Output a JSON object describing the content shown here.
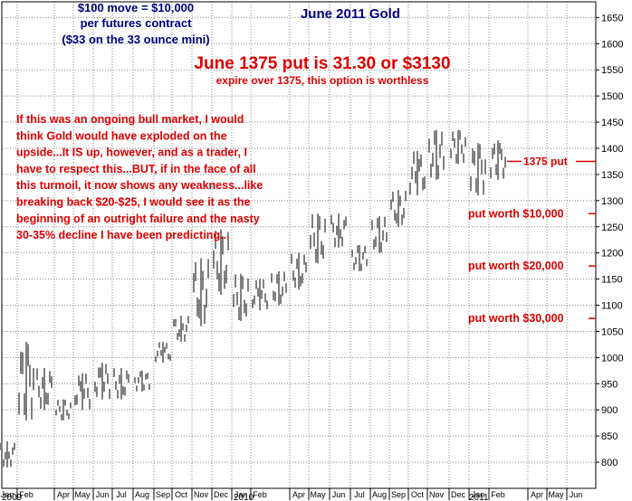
{
  "chart_data": {
    "type": "bar",
    "subtype": "ohlc",
    "title": "June 2011 Gold",
    "ylim": [
      750,
      1680
    ],
    "y_scale": "linear",
    "y_ticks": [
      800,
      850,
      900,
      950,
      1000,
      1050,
      1100,
      1150,
      1200,
      1250,
      1300,
      1350,
      1400,
      1450,
      1500,
      1550,
      1600,
      1650
    ],
    "grid": true,
    "month_labels": [
      "Jan",
      "Feb",
      "Apr",
      "May",
      "Jun",
      "Jul",
      "Aug",
      "Sep",
      "Oct",
      "Nov",
      "Dec",
      "Jan",
      "Feb",
      "Apr",
      "May",
      "Jun",
      "Jul",
      "Aug",
      "Sep",
      "Oct",
      "Nov",
      "Dec",
      "Jan",
      "Feb",
      "Apr",
      "May",
      "Jun"
    ],
    "year_labels": [
      "2009",
      "2010",
      "2011"
    ],
    "series": [
      {
        "values": [
          {
            "x": "2009-01",
            "low": 790,
            "high": 840
          },
          {
            "x": "2009-02",
            "low": 880,
            "high": 1030
          },
          {
            "x": "2009-03",
            "low": 900,
            "high": 980
          },
          {
            "x": "2009-04",
            "low": 880,
            "high": 920
          },
          {
            "x": "2009-05",
            "low": 900,
            "high": 970
          },
          {
            "x": "2009-06",
            "low": 920,
            "high": 990
          },
          {
            "x": "2009-07",
            "low": 920,
            "high": 980
          },
          {
            "x": "2009-08",
            "low": 935,
            "high": 975
          },
          {
            "x": "2009-09",
            "low": 990,
            "high": 1030
          },
          {
            "x": "2009-10",
            "low": 1030,
            "high": 1080
          },
          {
            "x": "2009-11",
            "low": 1060,
            "high": 1190
          },
          {
            "x": "2009-12",
            "low": 1120,
            "high": 1245
          },
          {
            "x": "2010-01",
            "low": 1070,
            "high": 1160
          },
          {
            "x": "2010-02",
            "low": 1090,
            "high": 1150
          },
          {
            "x": "2010-03",
            "low": 1100,
            "high": 1165
          },
          {
            "x": "2010-04",
            "low": 1130,
            "high": 1200
          },
          {
            "x": "2010-05",
            "low": 1180,
            "high": 1275
          },
          {
            "x": "2010-06",
            "low": 1210,
            "high": 1275
          },
          {
            "x": "2010-07",
            "low": 1165,
            "high": 1215
          },
          {
            "x": "2010-08",
            "low": 1200,
            "high": 1270
          },
          {
            "x": "2010-09",
            "low": 1250,
            "high": 1320
          },
          {
            "x": "2010-10",
            "low": 1310,
            "high": 1395
          },
          {
            "x": "2010-11",
            "low": 1340,
            "high": 1435
          },
          {
            "x": "2010-12",
            "low": 1370,
            "high": 1435
          },
          {
            "x": "2011-01",
            "low": 1310,
            "high": 1410
          },
          {
            "x": "2011-02",
            "low": 1340,
            "high": 1415
          }
        ]
      }
    ],
    "annotations": {
      "contract_line1": "$100 move = $10,000",
      "contract_line2": "per futures contract",
      "contract_line3": "($33 on the 33 ounce mini)",
      "headline": "June 1375 put is 31.30 or $3130",
      "subheadline": "expire over 1375, this option is worthless",
      "commentary": [
        "If this was an ongoing bull market, I would",
        "think Gold would have exploded on the",
        "upside...It IS up, however, and as a trader, I",
        "have to respect this...BUT, if in the face of all",
        "this turmoil, it now shows any weakness...like",
        "breaking back $20-$25, I would see it as the",
        "beginning of an outright failure and the nasty",
        "30-35% decline I have been predicting..."
      ],
      "strike_label": "1375 put",
      "strike_value": 1375,
      "levels": [
        {
          "label": "put worth $10,000",
          "value": 1275
        },
        {
          "label": "put worth $20,000",
          "value": 1175
        },
        {
          "label": "put worth $30,000",
          "value": 1075
        }
      ]
    },
    "colors": {
      "title": "#000080",
      "contract_note": "#000080",
      "annotations": "#dd0000",
      "bars": "#000000",
      "grid": "#888888"
    }
  }
}
